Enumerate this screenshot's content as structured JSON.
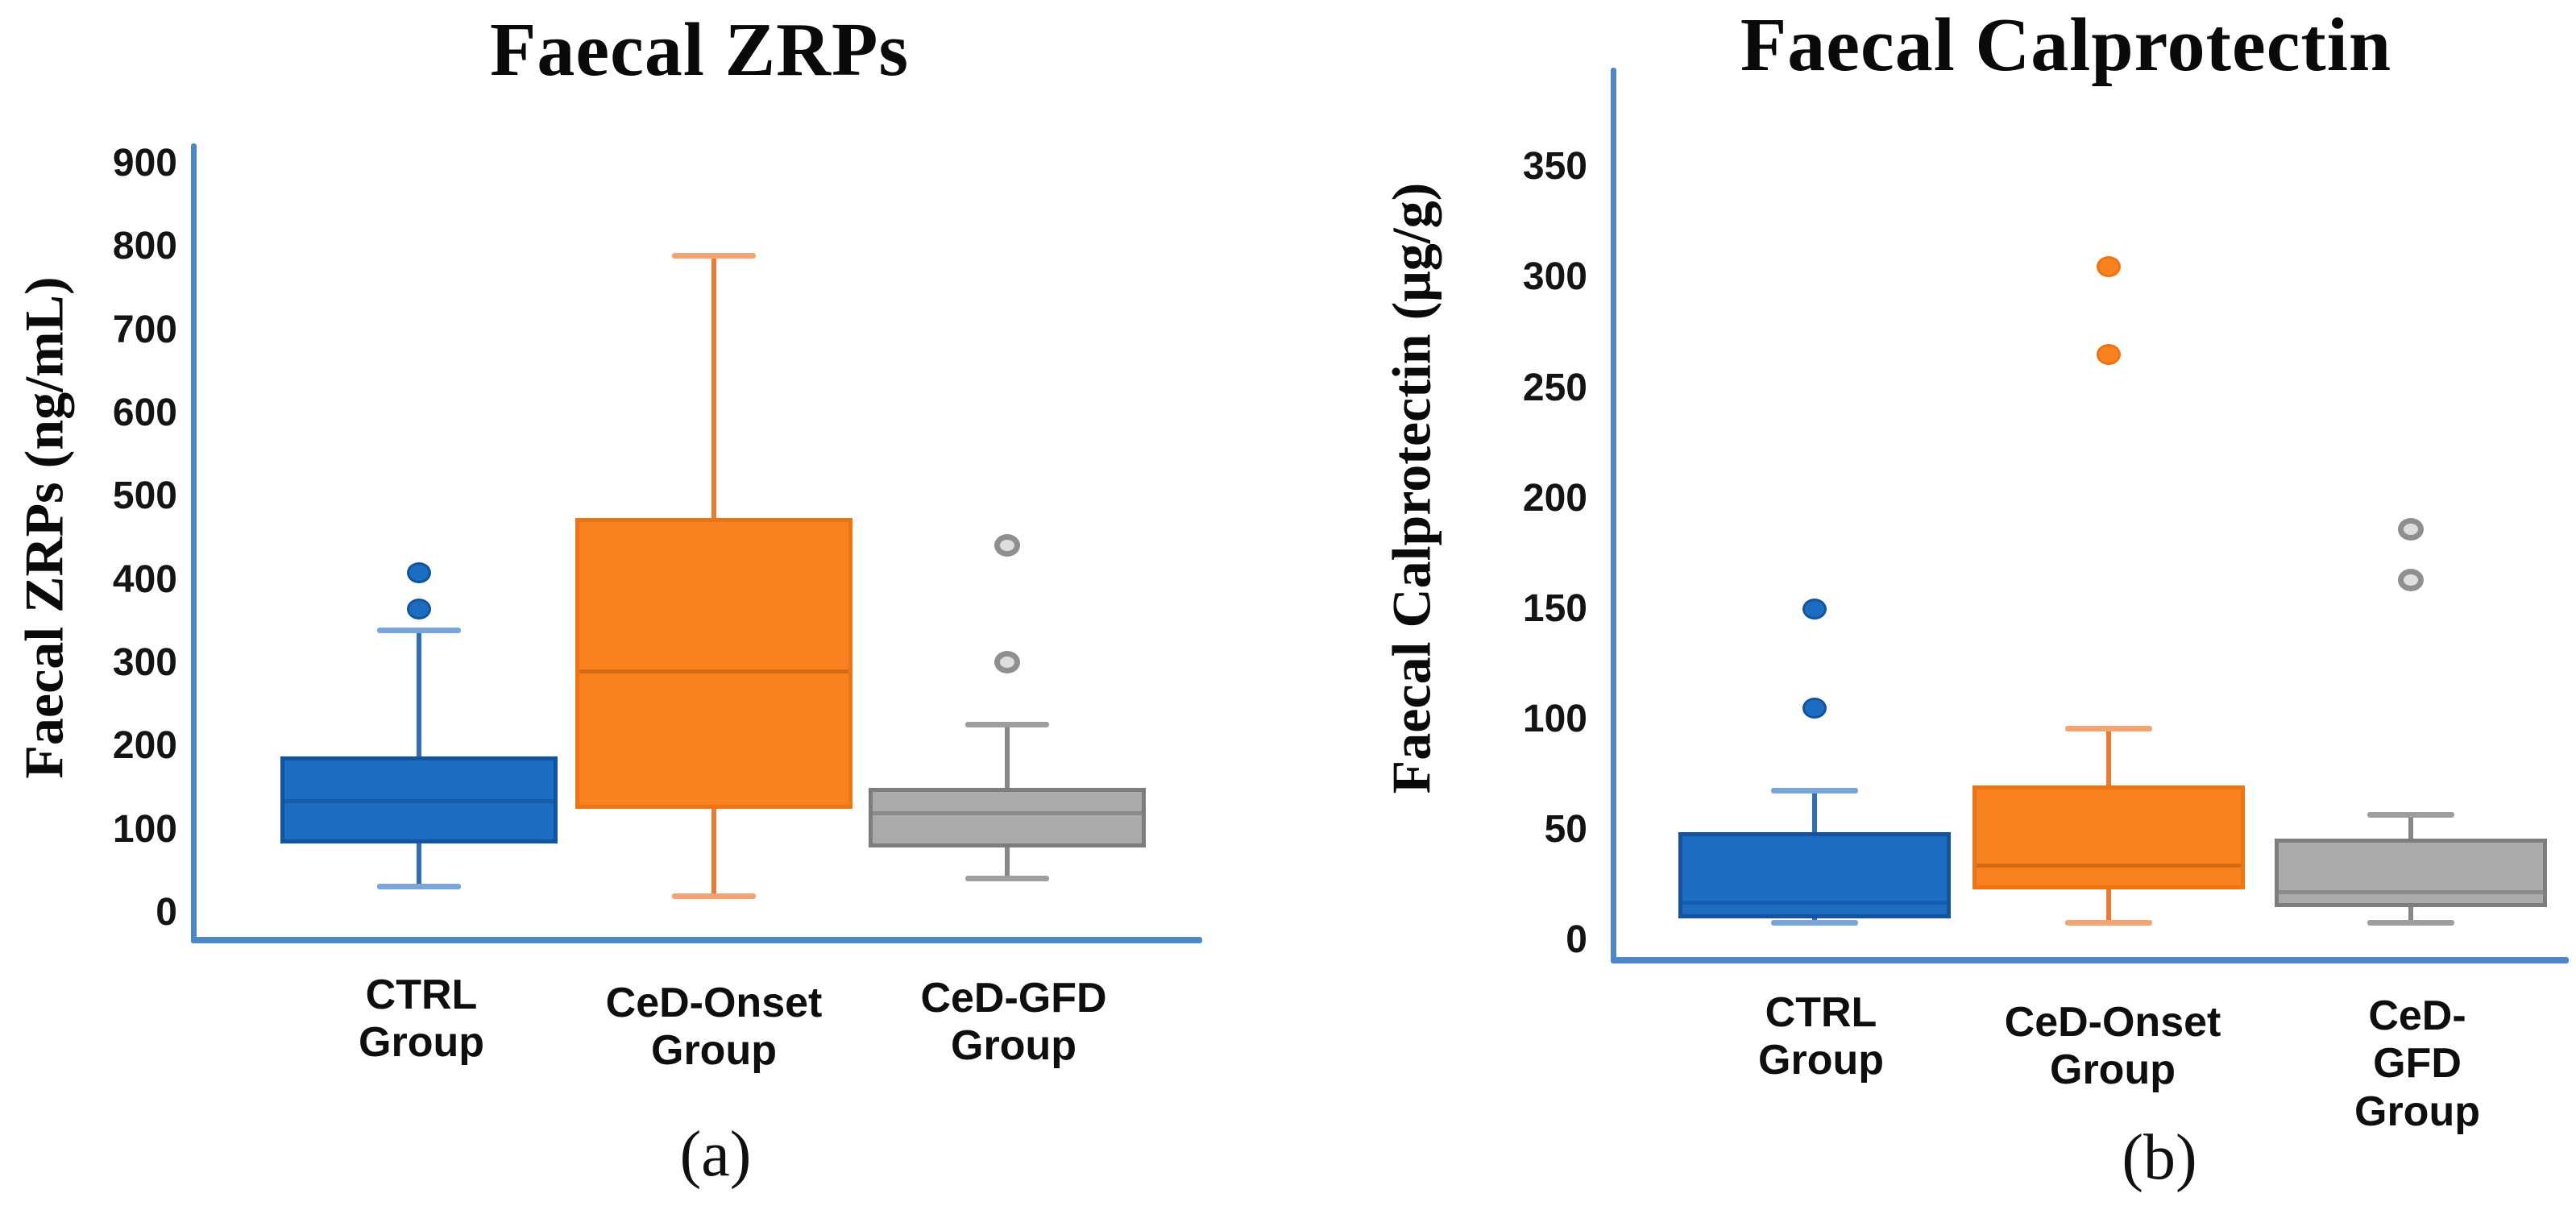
{
  "figure_kind": "two-panel box plot figure",
  "text_color": "#0f0f0f",
  "axis_color": "#4f86c6",
  "chart_data": [
    {
      "type": "box",
      "panel_label": "(a)",
      "title": "Faecal ZRPs",
      "ylabel": "Faecal ZRPs (ng/mL)",
      "ylim": [
        0,
        900
      ],
      "ytick_step": 100,
      "grid": false,
      "legend": false,
      "categories": [
        "CTRL\nGroup",
        "CeD-Onset\nGroup",
        "CeD-GFD\nGroup"
      ],
      "series": [
        {
          "name": "CTRL Group",
          "fill": "#1c6cc2",
          "edge": "#1254a0",
          "whisker": "#2e6fb8",
          "cap": "#79a5d9",
          "median_color": "#155ea9",
          "whisker_low": 32,
          "q1": 83,
          "median": 135,
          "q3": 188,
          "whisker_high": 340,
          "outliers": [
            365,
            408
          ],
          "outlier_style": "solid"
        },
        {
          "name": "CeD-Onset Group",
          "fill": "#f8821f",
          "edge": "#ec7414",
          "whisker": "#e87c35",
          "cap": "#f2a473",
          "median_color": "#d06a15",
          "whisker_low": 20,
          "q1": 125,
          "median": 290,
          "q3": 474,
          "whisker_high": 790,
          "outliers": [],
          "outlier_style": "solid"
        },
        {
          "name": "CeD-GFD Group",
          "fill": "#ababab",
          "edge": "#7d7d7d",
          "whisker": "#878787",
          "cap": "#9e9e9e",
          "median_color": "#8a8a8a",
          "whisker_low": 42,
          "q1": 78,
          "median": 120,
          "q3": 150,
          "whisker_high": 226,
          "outliers": [
            301,
            441
          ],
          "outlier_style": "ring"
        }
      ]
    },
    {
      "type": "box",
      "panel_label": "(b)",
      "title": "Faecal Calprotectin",
      "ylabel": "Faecal Calprotectin (μg/g)",
      "ylim": [
        0,
        350
      ],
      "ytick_step": 50,
      "grid": false,
      "legend": false,
      "categories": [
        "CTRL\nGroup",
        "CeD-Onset\nGroup",
        "CeD-GFD\nGroup"
      ],
      "series": [
        {
          "name": "CTRL Group",
          "fill": "#1c6cc2",
          "edge": "#1254a0",
          "whisker": "#2e6fb8",
          "cap": "#79a5d9",
          "median_color": "#155ea9",
          "whisker_low": 8,
          "q1": 10,
          "median": 17,
          "q3": 49,
          "whisker_high": 68,
          "outliers": [
            105,
            150
          ],
          "outlier_style": "solid"
        },
        {
          "name": "CeD-Onset Group",
          "fill": "#f8821f",
          "edge": "#ec7414",
          "whisker": "#e87c35",
          "cap": "#f2a473",
          "median_color": "#d06a15",
          "whisker_low": 8,
          "q1": 23,
          "median": 34,
          "q3": 70,
          "whisker_high": 96,
          "outliers": [
            265,
            305
          ],
          "outlier_style": "solid"
        },
        {
          "name": "CeD-GFD Group",
          "fill": "#ababab",
          "edge": "#7d7d7d",
          "whisker": "#878787",
          "cap": "#9e9e9e",
          "median_color": "#8a8a8a",
          "whisker_low": 8,
          "q1": 15,
          "median": 22,
          "q3": 46,
          "whisker_high": 57,
          "outliers": [
            163,
            186
          ],
          "outlier_style": "ring"
        }
      ]
    }
  ]
}
